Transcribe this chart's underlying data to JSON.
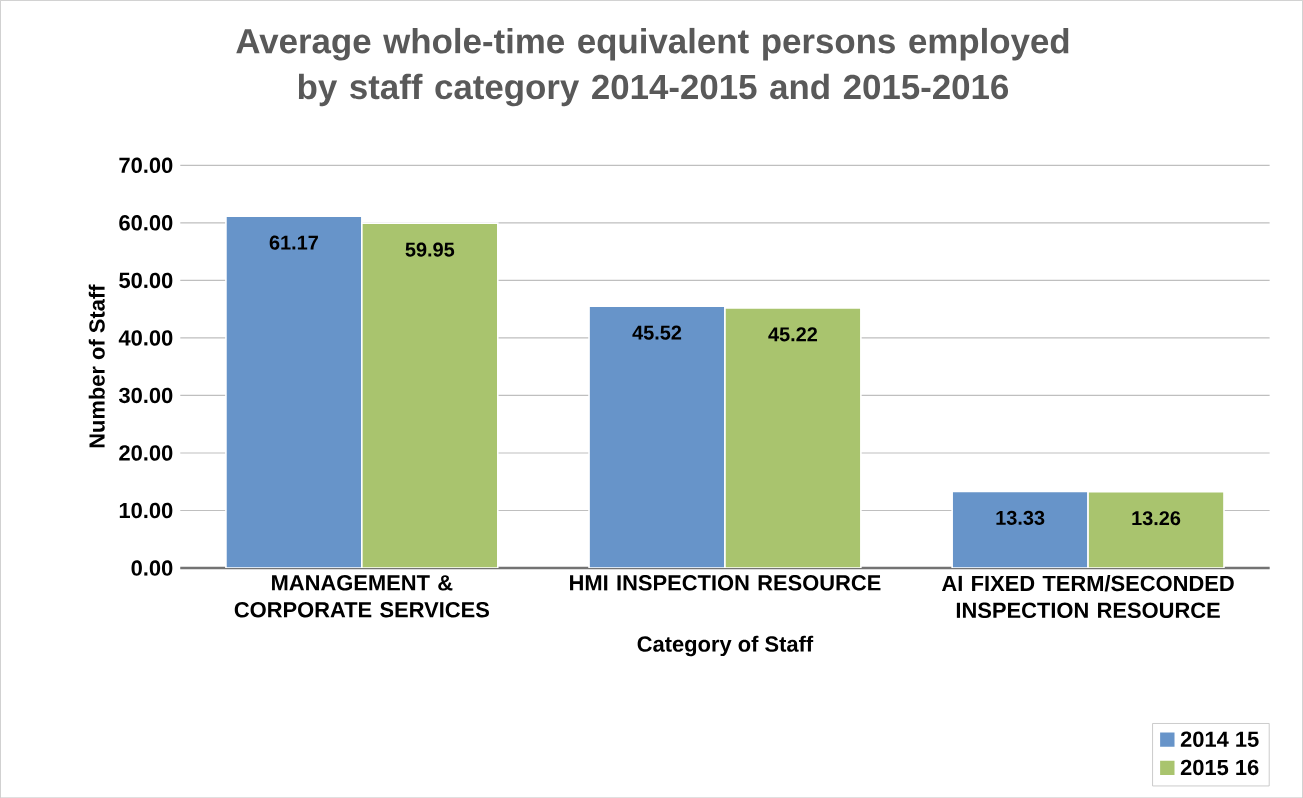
{
  "chart_data": {
    "type": "bar",
    "title": "Average whole-time equivalent persons employed by staff category 2014-2015 and 2015-2016",
    "xlabel": "Category of Staff",
    "ylabel": "Number of Staff",
    "categories": [
      "MANAGEMENT & CORPORATE SERVICES",
      "HMI INSPECTION RESOURCE",
      "AI FIXED TERM/SECONDED INSPECTION RESOURCE"
    ],
    "series": [
      {
        "name": "2014 15",
        "color": "#6794c9",
        "values": [
          61.17,
          45.52,
          13.33
        ]
      },
      {
        "name": "2015 16",
        "color": "#a9c46e",
        "values": [
          59.95,
          45.22,
          13.26
        ]
      }
    ],
    "ylim": [
      0,
      70
    ],
    "yticks": [
      {
        "value": 0,
        "label": "0.00"
      },
      {
        "value": 10,
        "label": "10.00"
      },
      {
        "value": 20,
        "label": "20.00"
      },
      {
        "value": 30,
        "label": "30.00"
      },
      {
        "value": 40,
        "label": "40.00"
      },
      {
        "value": 50,
        "label": "50.00"
      },
      {
        "value": 60,
        "label": "60.00"
      },
      {
        "value": 70,
        "label": "70.00"
      }
    ],
    "grid": "y",
    "legend": "bottom right",
    "data_labels": true
  }
}
